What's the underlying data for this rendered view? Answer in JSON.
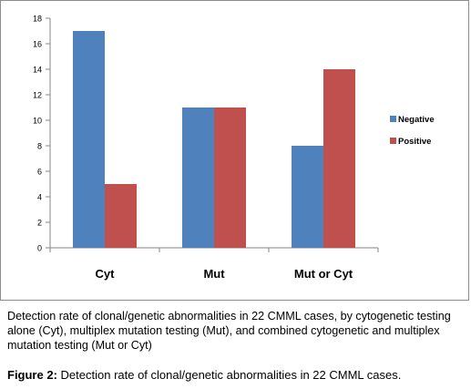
{
  "colors": {
    "negative": "#4f81bd",
    "positive": "#c0504d"
  },
  "chart_data": {
    "type": "bar",
    "categories": [
      "Cyt",
      "Mut",
      "Mut or Cyt"
    ],
    "series": [
      {
        "name": "Negative",
        "values": [
          17,
          11,
          8
        ]
      },
      {
        "name": "Positive",
        "values": [
          5,
          11,
          14
        ]
      }
    ],
    "ylim": [
      0,
      18
    ],
    "yticks": [
      0,
      2,
      4,
      6,
      8,
      10,
      12,
      14,
      16,
      18
    ],
    "grid": false,
    "legend_position": "right"
  },
  "caption": "Detection rate of clonal/genetic abnormalities in 22 CMML cases, by cytogenetic testing alone (Cyt), multiplex mutation testing (Mut), and combined cytogenetic and multiplex mutation testing (Mut or Cyt)",
  "figure": {
    "label": "Figure 2:",
    "title": "Detection rate of clonal/genetic abnormalities in 22 CMML cases."
  }
}
